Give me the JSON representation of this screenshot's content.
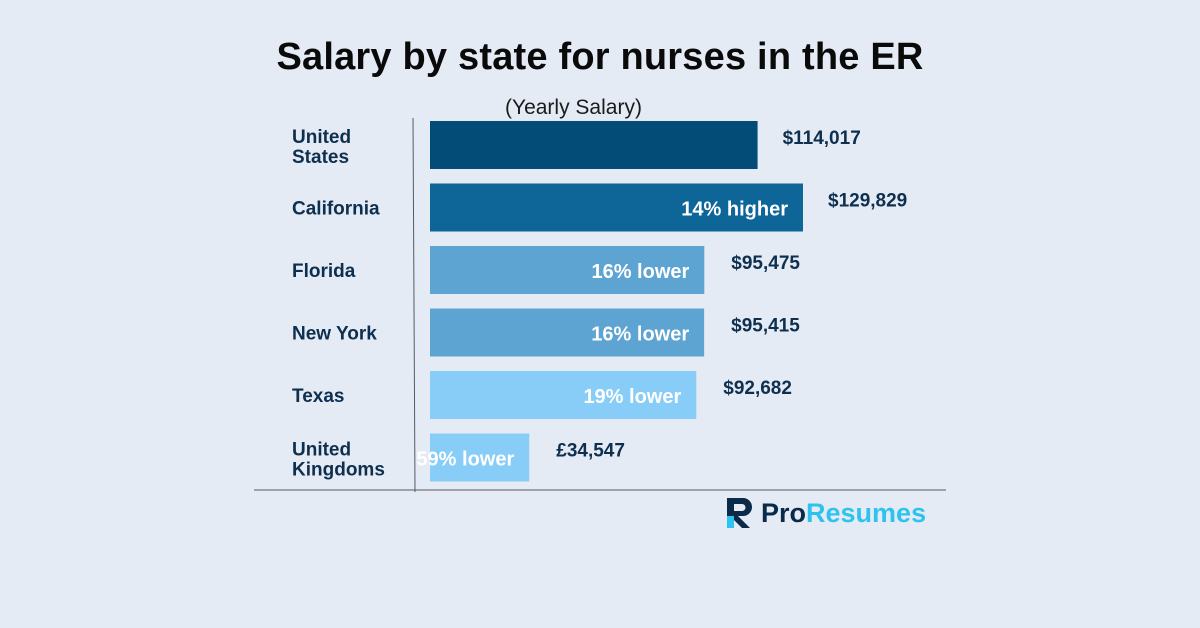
{
  "title": "Salary by state for nurses in the ER",
  "subtitle": "(Yearly Salary)",
  "brand": {
    "part1": "Pro",
    "part2": "Resumes",
    "accent": "#2ec3ef",
    "dark": "#0a2a4a"
  },
  "chart_data": {
    "type": "bar",
    "orientation": "horizontal",
    "title": "Salary by state for nurses in the ER",
    "subtitle": "(Yearly Salary)",
    "categories": [
      [
        "United",
        "States"
      ],
      [
        "California"
      ],
      [
        "Florida"
      ],
      [
        "New York"
      ],
      [
        "Texas"
      ],
      [
        "United",
        "Kingdoms"
      ]
    ],
    "values": [
      114017,
      129829,
      95475,
      95415,
      92682,
      34547
    ],
    "value_labels": [
      "$114,017",
      "$129,829",
      "$95,475",
      "$95,415",
      "$92,682",
      "£34,547"
    ],
    "bar_annotations": [
      "",
      "14% higher",
      "16% lower",
      "16% lower",
      "19% lower",
      "59% lower"
    ],
    "bar_colors": [
      "#044c78",
      "#0d6598",
      "#5ea4d2",
      "#5ea4d2",
      "#87cdf7",
      "#87cdf7"
    ],
    "xlim": [
      0,
      129829
    ],
    "grid": false
  }
}
